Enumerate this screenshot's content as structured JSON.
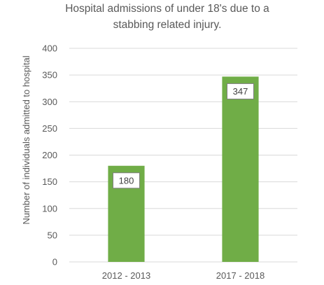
{
  "chart_data": {
    "type": "bar",
    "title_lines": [
      "Hospital admissions of under 18's due to a",
      "stabbing related injury."
    ],
    "xlabel": "",
    "ylabel": "Number of individuals admitted to hospital",
    "categories": [
      "2012 - 2013",
      "2017 - 2018"
    ],
    "values": [
      180,
      347
    ],
    "data_labels": [
      "180",
      "347"
    ],
    "ylim": [
      0,
      400
    ],
    "yticks": [
      0,
      50,
      100,
      150,
      200,
      250,
      300,
      350,
      400
    ],
    "grid": true,
    "legend": "none",
    "bar_color": "#70AD47",
    "grid_color": "#D9D9D9",
    "label_border_color": "#7F7F7F"
  }
}
